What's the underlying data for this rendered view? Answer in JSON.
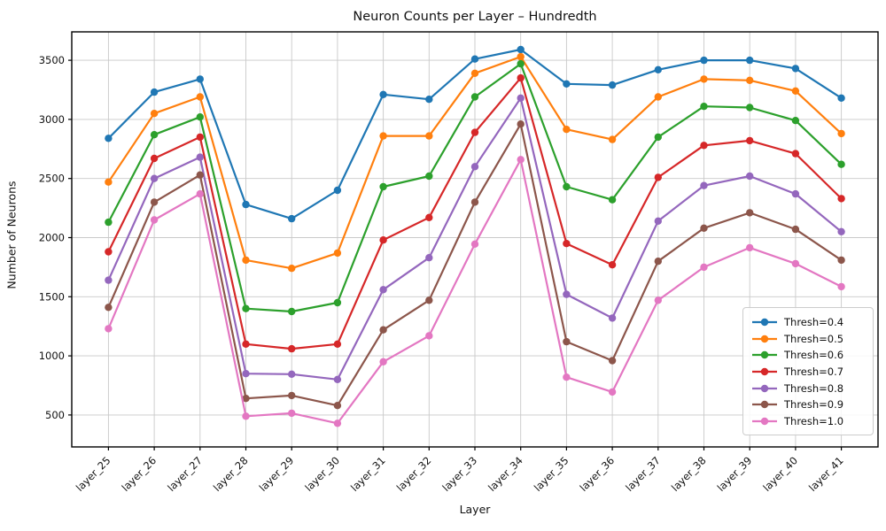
{
  "chart_data": {
    "type": "line",
    "title": "Neuron Counts per Layer – Hundredth",
    "xlabel": "Layer",
    "ylabel": "Number of Neurons",
    "categories": [
      "layer_25",
      "layer_26",
      "layer_27",
      "layer_28",
      "layer_29",
      "layer_30",
      "layer_31",
      "layer_32",
      "layer_33",
      "layer_34",
      "layer_35",
      "layer_36",
      "layer_37",
      "layer_38",
      "layer_39",
      "layer_40",
      "layer_41"
    ],
    "yticks": [
      500,
      1000,
      1500,
      2000,
      2500,
      3000,
      3500
    ],
    "ylim": [
      230,
      3740
    ],
    "grid": true,
    "legend_position": "lower right",
    "marker": "circle",
    "series": [
      {
        "name": "Thresh=0.4",
        "color": "#1f77b4",
        "values": [
          2840,
          3230,
          3340,
          2280,
          2160,
          2400,
          3210,
          3170,
          3510,
          3590,
          3300,
          3290,
          3420,
          3500,
          3500,
          3430,
          3180
        ]
      },
      {
        "name": "Thresh=0.5",
        "color": "#ff7f0e",
        "values": [
          2470,
          3050,
          3190,
          1810,
          1740,
          1870,
          2860,
          2860,
          3390,
          3530,
          2915,
          2830,
          3190,
          3340,
          3330,
          3240,
          2880
        ]
      },
      {
        "name": "Thresh=0.6",
        "color": "#2ca02c",
        "values": [
          2130,
          2870,
          3020,
          1400,
          1375,
          1450,
          2430,
          2520,
          3190,
          3470,
          2430,
          2320,
          2850,
          3110,
          3100,
          2990,
          2620
        ]
      },
      {
        "name": "Thresh=0.7",
        "color": "#d62728",
        "values": [
          1880,
          2670,
          2850,
          1100,
          1060,
          1100,
          1980,
          2170,
          2890,
          3350,
          1950,
          1770,
          2510,
          2780,
          2820,
          2710,
          2330
        ]
      },
      {
        "name": "Thresh=0.8",
        "color": "#9467bd",
        "values": [
          1640,
          2500,
          2680,
          850,
          845,
          800,
          1560,
          1830,
          2600,
          3180,
          1520,
          1320,
          2140,
          2440,
          2520,
          2370,
          2050
        ]
      },
      {
        "name": "Thresh=0.9",
        "color": "#8c564b",
        "values": [
          1410,
          2300,
          2530,
          640,
          665,
          580,
          1220,
          1470,
          2300,
          2960,
          1120,
          960,
          1800,
          2080,
          2210,
          2070,
          1810
        ]
      },
      {
        "name": "Thresh=1.0",
        "color": "#e377c2",
        "values": [
          1230,
          2150,
          2370,
          490,
          515,
          430,
          950,
          1170,
          1945,
          2660,
          820,
          695,
          1470,
          1750,
          1915,
          1780,
          1585
        ]
      }
    ],
    "style": {
      "grid_color": "#c9c9c9",
      "spine_color": "#000000",
      "background": "#ffffff"
    }
  }
}
